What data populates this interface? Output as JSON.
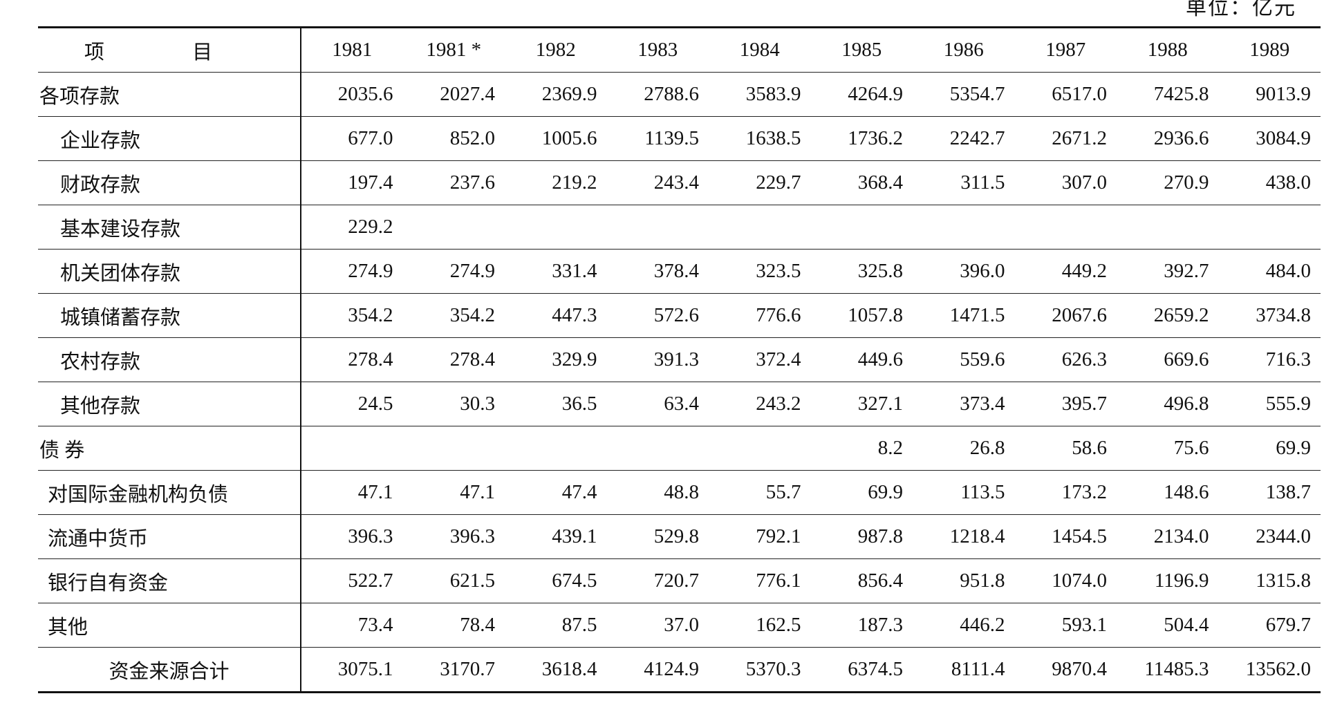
{
  "unit": "单位：亿元",
  "table": {
    "header": [
      "项 目",
      "1981",
      "1981 *",
      "1982",
      "1983",
      "1984",
      "1985",
      "1986",
      "1987",
      "1988",
      "1989"
    ],
    "rows": [
      [
        "各项存款",
        "2035.6",
        "2027.4",
        "2369.9",
        "2788.6",
        "3583.9",
        "4264.9",
        "5354.7",
        "6517.0",
        "7425.8",
        "9013.9"
      ],
      [
        "企业存款",
        "677.0",
        "852.0",
        "1005.6",
        "1139.5",
        "1638.5",
        "1736.2",
        "2242.7",
        "2671.2",
        "2936.6",
        "3084.9"
      ],
      [
        "财政存款",
        "197.4",
        "237.6",
        "219.2",
        "243.4",
        "229.7",
        "368.4",
        "311.5",
        "307.0",
        "270.9",
        "438.0"
      ],
      [
        "基本建设存款",
        "229.2",
        null,
        null,
        null,
        null,
        null,
        null,
        null,
        null,
        null
      ],
      [
        "机关团体存款",
        "274.9",
        "274.9",
        "331.4",
        "378.4",
        "323.5",
        "325.8",
        "396.0",
        "449.2",
        "392.7",
        "484.0"
      ],
      [
        "城镇储蓄存款",
        "354.2",
        "354.2",
        "447.3",
        "572.6",
        "776.6",
        "1057.8",
        "1471.5",
        "2067.6",
        "2659.2",
        "3734.8"
      ],
      [
        "农村存款",
        "278.4",
        "278.4",
        "329.9",
        "391.3",
        "372.4",
        "449.6",
        "559.6",
        "626.3",
        "669.6",
        "716.3"
      ],
      [
        "其他存款",
        "24.5",
        "30.3",
        "36.5",
        "63.4",
        "243.2",
        "327.1",
        "373.4",
        "395.7",
        "496.8",
        "555.9"
      ],
      [
        "债 券",
        null,
        null,
        null,
        null,
        null,
        "8.2",
        "26.8",
        "58.6",
        "75.6",
        "69.9"
      ],
      [
        "对国际金融机构负债",
        "47.1",
        "47.1",
        "47.4",
        "48.8",
        "55.7",
        "69.9",
        "113.5",
        "173.2",
        "148.6",
        "138.7"
      ],
      [
        "流通中货币",
        "396.3",
        "396.3",
        "439.1",
        "529.8",
        "792.1",
        "987.8",
        "1218.4",
        "1454.5",
        "2134.0",
        "2344.0"
      ],
      [
        "银行自有资金",
        "522.7",
        "621.5",
        "674.5",
        "720.7",
        "776.1",
        "856.4",
        "951.8",
        "1074.0",
        "1196.9",
        "1315.8"
      ],
      [
        "其他",
        "73.4",
        "78.4",
        "87.5",
        "37.0",
        "162.5",
        "187.3",
        "446.2",
        "593.1",
        "504.4",
        "679.7"
      ],
      [
        "资金来源合计",
        "3075.1",
        "3170.7",
        "3618.4",
        "4124.9",
        "5370.3",
        "6374.5",
        "8111.4",
        "9870.4",
        "11485.3",
        "13562.0"
      ]
    ]
  }
}
